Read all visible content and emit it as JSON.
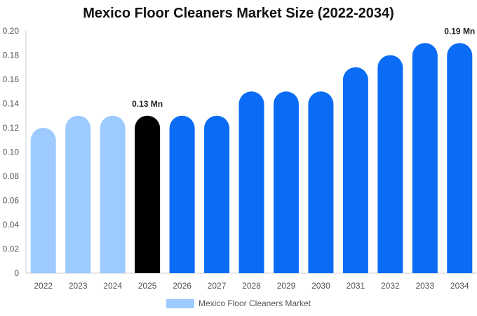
{
  "chart_data": {
    "type": "bar",
    "title": "Mexico Floor Cleaners Market Size (2022-2034)",
    "categories": [
      "2022",
      "2023",
      "2024",
      "2025",
      "2026",
      "2027",
      "2028",
      "2029",
      "2030",
      "2031",
      "2032",
      "2033",
      "2034"
    ],
    "series": [
      {
        "name": "Mexico Floor Cleaners Market",
        "values": [
          0.12,
          0.13,
          0.13,
          0.13,
          0.13,
          0.13,
          0.15,
          0.15,
          0.15,
          0.17,
          0.18,
          0.19,
          0.19
        ]
      }
    ],
    "bar_colors": [
      "#9ECBFF",
      "#9ECBFF",
      "#9ECBFF",
      "#000000",
      "#0A6CF5",
      "#0A6CF5",
      "#0A6CF5",
      "#0A6CF5",
      "#0A6CF5",
      "#0A6CF5",
      "#0A6CF5",
      "#0A6CF5",
      "#0A6CF5"
    ],
    "ylim": [
      0,
      0.2
    ],
    "yticks": [
      "0",
      "0.02",
      "0.04",
      "0.06",
      "0.08",
      "0.10",
      "0.12",
      "0.14",
      "0.16",
      "0.18",
      "0.20"
    ],
    "annotations": [
      {
        "category": "2025",
        "text": "0.13 Mn"
      },
      {
        "category": "2034",
        "text": "0.19 Mn"
      }
    ],
    "grid": false,
    "legend_position": "bottom",
    "legend_color": "#9ECBFF"
  }
}
